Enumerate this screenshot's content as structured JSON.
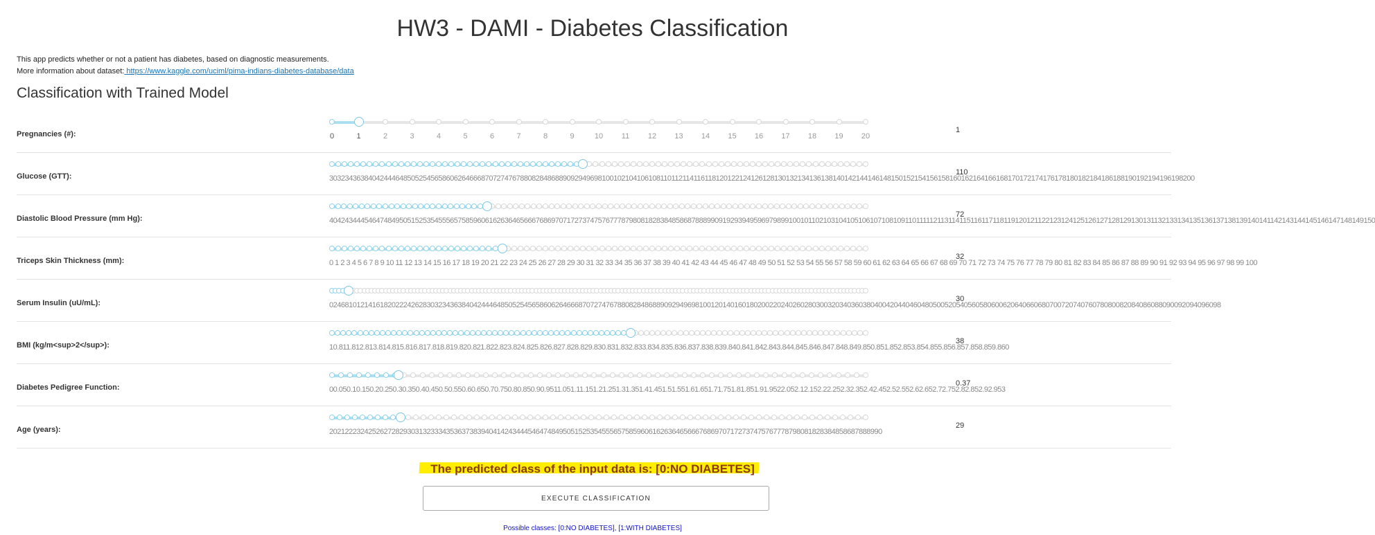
{
  "title": "HW3 - DAMI - Diabetes Classification",
  "intro": {
    "line1": "This app predicts whether or not a patient has diabetes, based on diagnostic measurements.",
    "line2_prefix": "More information about dataset:",
    "link": " https://www.kaggle.com/uciml/pima-indians-diabetes-database/data"
  },
  "subtitle": "Classification with Trained Model",
  "sliders": [
    {
      "label": "Pregnancies (#):",
      "value": "1",
      "min": 0,
      "max": 20,
      "current": 1,
      "steps": 21,
      "ticks": [
        "0",
        "1",
        "2",
        "3",
        "4",
        "5",
        "6",
        "7",
        "8",
        "9",
        "10",
        "11",
        "12",
        "13",
        "14",
        "15",
        "16",
        "17",
        "18",
        "19",
        "20"
      ]
    },
    {
      "label": "Glucose (GTT):",
      "value": "110",
      "min": 30,
      "max": 200,
      "current": 110,
      "steps": 86,
      "dense_text": "3032343638404244464850525456586062646668707274767880828486889092949698100102104106108110112114116118120122124126128130132134136138140142144146148150152154156158160162164166168170172174176178180182184186188190192194196198200"
    },
    {
      "label": "Diastolic Blood Pressure (mm Hg):",
      "value": "72",
      "min": 40,
      "max": 150,
      "current": 72,
      "steps": 91,
      "dense_text": "4042434445464748495051525354555657585960616263646566676869707172737475767778798081828384858687888990919293949596979899100101102103104105106107108109110111112113114115116117118119120121122123124125126127128129130131132133134135136137138139140141142143144145146147148149150"
    },
    {
      "label": "Triceps Skin Thickness (mm):",
      "value": "32",
      "min": 0,
      "max": 100,
      "current": 32,
      "steps": 86,
      "dense_text": "0 1 2 3 4 5 6 7 8 9 10 11 12 13 14 15 16 17 18 19 20 21 22 23 24 25 26 27 28 29 30 31 32 33 34 35 36 37 38 39 40 41 42 43 44 45 46 47 48 49 50 51 52 53 54 55 56 57 58 59 60 61 62 63 64 65 66 67 68 69 70 71 72 73 74 75 76 77 78 79 80 81 82 83 84 85 86 87 88 89 90 91 92 93 94 95 96 97 98 99 100"
    },
    {
      "label": "Serum Insulin (uU/mL):",
      "value": "30",
      "min": 0,
      "max": 980,
      "current": 30,
      "steps": 150,
      "dense_text": "0246810121416182022242628303234363840424446485052545658606264666870727476788082848688909294969810012014016018020022024026028030032034036038040042044046048050052054056058060062064066068070072074076078080082084086088090092094096098"
    },
    {
      "label": "BMI (kg/m<sup>2</sup>):",
      "value": "38",
      "min": 10,
      "max": 60,
      "current": 38,
      "steps": 96,
      "dense_text": "10.811.812.813.814.815.816.817.818.819.820.821.822.823.824.825.826.827.828.829.830.831.832.833.834.835.836.837.838.839.840.841.842.843.844.845.846.847.848.849.850.851.852.853.854.855.856.857.858.859.860"
    },
    {
      "label": "Diabetes Pedigree Function:",
      "value": "0.37",
      "min": 0,
      "max": 2.953,
      "current": 0.37,
      "steps": 60,
      "dense_text": "00.050.10.150.20.250.30.350.40.450.50.550.60.650.70.750.80.850.90.9511.051.11.151.21.251.31.351.41.451.51.551.61.651.71.751.81.851.91.9522.052.12.152.22.252.32.352.42.452.52.552.62.652.72.752.82.852.92.953"
    },
    {
      "label": "Age (years):",
      "value": "29",
      "min": 20,
      "max": 90,
      "current": 29,
      "steps": 71,
      "dense_text": "2021222324252627282930313233343536373839404142434445464748495051525354555657585960616263646566676869707172737475767778798081828384858687888990"
    }
  ],
  "result_text": "The predicted class of the input data is: [0:NO DIABETES]",
  "execute_label": "EXECUTE CLASSIFICATION",
  "possible_classes": "Possible classes: [0:NO DIABETES], [1:WITH DIABETES]",
  "colors": {
    "accent": "#7cc8e6",
    "highlight": "#ffee00",
    "result_text": "#8b3a0f",
    "classes_text": "#1010cc"
  }
}
